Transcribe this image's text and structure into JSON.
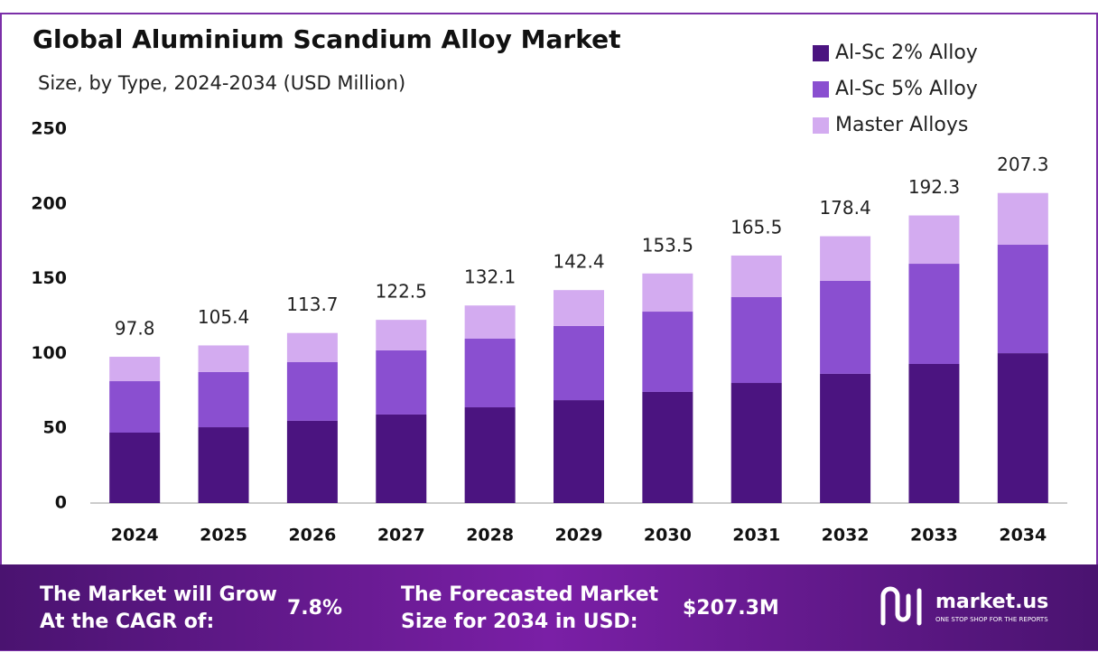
{
  "chart_data": {
    "type": "stacked-bar",
    "title": "Global Aluminium  Scandium Alloy Market",
    "subtitle": "Size, by Type, 2024-2034 (USD Million)",
    "categories": [
      "2024",
      "2025",
      "2026",
      "2027",
      "2028",
      "2029",
      "2030",
      "2031",
      "2032",
      "2033",
      "2034"
    ],
    "series": [
      {
        "name": "Al-Sc 2% Alloy",
        "color": "#4b1480",
        "values": [
          47.1,
          50.7,
          55.0,
          59.2,
          64.0,
          68.8,
          74.3,
          80.3,
          86.4,
          93.0,
          100.2
        ]
      },
      {
        "name": "Al-Sc 5% Alloy",
        "color": "#8a4fd0",
        "values": [
          34.4,
          36.9,
          39.2,
          42.9,
          45.9,
          49.6,
          53.7,
          57.4,
          62.2,
          67.0,
          72.5
        ]
      },
      {
        "name": "Master Alloys",
        "color": "#d3abf0",
        "values": [
          16.3,
          17.8,
          19.5,
          20.4,
          22.2,
          24.0,
          25.5,
          27.8,
          29.8,
          32.3,
          34.6
        ]
      }
    ],
    "totals": [
      97.8,
      105.4,
      113.7,
      122.5,
      132.1,
      142.4,
      153.5,
      165.5,
      178.4,
      192.3,
      207.3
    ],
    "ylim": [
      0,
      250
    ],
    "yticks": [
      0,
      50,
      100,
      150,
      200,
      250
    ],
    "grid": false,
    "legend": "top-right"
  },
  "footer": {
    "cagr_text": [
      "The Market will Grow",
      "At the CAGR of:"
    ],
    "cagr_value": "7.8%",
    "forecast_text": [
      "The Forecasted Market",
      "Size for 2034 in USD:"
    ],
    "forecast_value": "$207.3M",
    "brand": "market.us",
    "tagline": "ONE STOP SHOP FOR THE REPORTS"
  }
}
